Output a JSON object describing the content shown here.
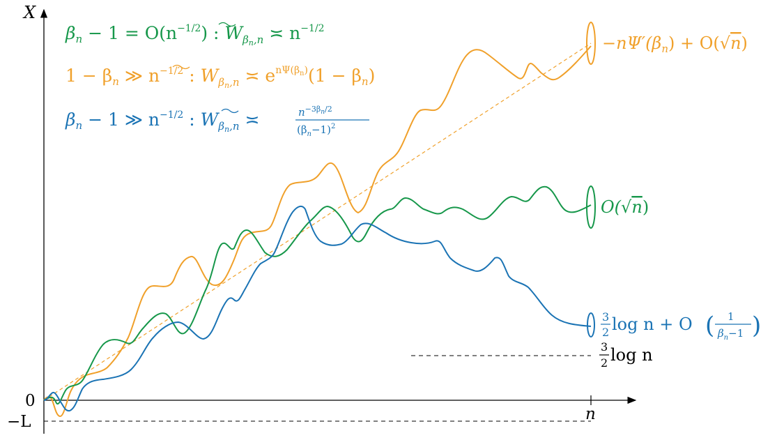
{
  "axes": {
    "y_label": "X",
    "x_end_label": "n",
    "origin_label": "0",
    "lower_label": "−L"
  },
  "legend": {
    "green": {
      "lhs": "β",
      "lhs_sub": "n",
      "rel": " − 1 = O(n",
      "rel_sup": "−1/2",
      "tail": ") : ",
      "w": "W",
      "w_sub": "β",
      "w_sub2": "n",
      "w_sub3": ",n",
      "asym": " ≍ n",
      "asym_sup": "−1/2"
    },
    "orange": {
      "pre": "1 − β",
      "pre_sub": "n",
      "rel": " ≫ n",
      "rel_sup": "−1/2",
      "tail": " : ",
      "w": "W",
      "w_sub": "β",
      "w_sub2": "n",
      "w_sub3": ",n",
      "asym": " ≍ e",
      "asym_sup": "nΨ(β",
      "asym_sup2": "n",
      "asym_sup3": ")",
      "post": "(1 − β",
      "post_sub": "n",
      "post_end": ")"
    },
    "blue": {
      "lhs": "β",
      "lhs_sub": "n",
      "rel": " − 1 ≫ n",
      "rel_sup": "−1/2",
      "tail": " : ",
      "w": "W",
      "w_sub": "β",
      "w_sub2": "n",
      "w_sub3": ",n",
      "asym": " ≍ ",
      "frac_num": "n",
      "frac_num_sup": "−3β",
      "frac_num_sup2": "n",
      "frac_num_sup3": "/2",
      "frac_den": "(β",
      "frac_den_sub": "n",
      "frac_den_end": "−1)",
      "frac_den_sup": "2"
    }
  },
  "annotations": {
    "orange_end": {
      "a": "−nΨ′(β",
      "a_sub": "n",
      "b": ") + O(",
      "sqrt": "√",
      "rad": "n",
      "c": ")"
    },
    "green_end": {
      "a": "O(",
      "sqrt": "√",
      "rad": "n",
      "c": ")"
    },
    "blue_end": {
      "frac_num": "3",
      "frac_den": "2",
      "a": " log n + O",
      "lp": "(",
      "f_num": "1",
      "f_den": "β",
      "f_den_sub": "n",
      "f_den_end": "−1",
      "rp": ")"
    },
    "dashed_level": {
      "frac_num": "3",
      "frac_den": "2",
      "a": " log n"
    }
  },
  "colors": {
    "green": "#16974a",
    "orange": "#f0a02a",
    "blue": "#1a73b4",
    "axis": "#000000"
  }
}
